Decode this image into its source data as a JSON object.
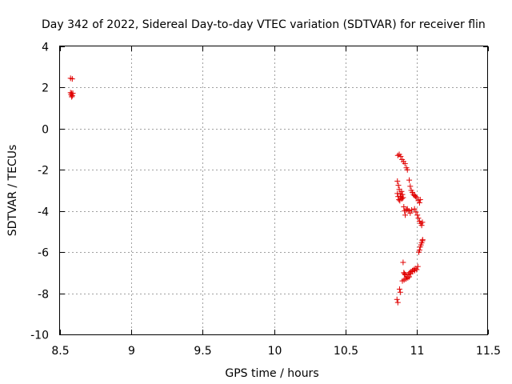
{
  "chart_data": {
    "type": "scatter",
    "title": "Day 342 of 2022, Sidereal Day-to-day VTEC variation (SDTVAR) for receiver flin",
    "xlabel": "GPS time / hours",
    "ylabel": "SDTVAR / TECUs",
    "xlim": [
      8.5,
      11.5
    ],
    "ylim": [
      -10,
      4
    ],
    "xticks": [
      "8.5",
      "9",
      "9.5",
      "10",
      "10.5",
      "11",
      "11.5"
    ],
    "yticks": [
      "4",
      "2",
      "0",
      "-2",
      "-4",
      "-6",
      "-8",
      "-10"
    ],
    "xtick_values": [
      8.5,
      9,
      9.5,
      10,
      10.5,
      11,
      11.5
    ],
    "ytick_values": [
      4,
      2,
      0,
      -2,
      -4,
      -6,
      -8,
      -10
    ],
    "grid": true,
    "marker_color": "#e00000",
    "series": [
      {
        "name": "SDTVAR",
        "marker": "plus",
        "points": [
          [
            8.574,
            2.45
          ],
          [
            8.586,
            2.42
          ],
          [
            8.574,
            1.75
          ],
          [
            8.578,
            1.65
          ],
          [
            8.582,
            1.72
          ],
          [
            8.586,
            1.6
          ],
          [
            8.59,
            1.72
          ],
          [
            8.582,
            1.55
          ],
          [
            10.868,
            -1.3
          ],
          [
            10.878,
            -1.25
          ],
          [
            10.888,
            -1.35
          ],
          [
            10.898,
            -1.5
          ],
          [
            10.908,
            -1.6
          ],
          [
            10.918,
            -1.7
          ],
          [
            10.928,
            -1.9
          ],
          [
            10.935,
            -2.0
          ],
          [
            10.865,
            -2.55
          ],
          [
            10.872,
            -2.75
          ],
          [
            10.878,
            -2.95
          ],
          [
            10.884,
            -3.15
          ],
          [
            10.89,
            -3.3
          ],
          [
            10.896,
            -3.4
          ],
          [
            10.902,
            -3.35
          ],
          [
            10.865,
            -3.15
          ],
          [
            10.87,
            -3.3
          ],
          [
            10.876,
            -3.45
          ],
          [
            10.882,
            -3.5
          ],
          [
            10.888,
            -3.3
          ],
          [
            10.894,
            -3.05
          ],
          [
            10.9,
            -3.2
          ],
          [
            10.905,
            -3.35
          ],
          [
            10.91,
            -3.8
          ],
          [
            10.915,
            -4.0
          ],
          [
            10.92,
            -4.2
          ],
          [
            10.928,
            -3.95
          ],
          [
            10.935,
            -3.9
          ],
          [
            10.945,
            -4.0
          ],
          [
            10.955,
            -4.1
          ],
          [
            10.965,
            -3.95
          ],
          [
            10.948,
            -2.5
          ],
          [
            10.955,
            -2.8
          ],
          [
            10.962,
            -3.0
          ],
          [
            10.97,
            -3.1
          ],
          [
            10.978,
            -3.2
          ],
          [
            10.985,
            -3.25
          ],
          [
            10.992,
            -3.3
          ],
          [
            11.0,
            -3.35
          ],
          [
            10.985,
            -3.9
          ],
          [
            10.995,
            -4.05
          ],
          [
            11.005,
            -4.2
          ],
          [
            11.012,
            -4.35
          ],
          [
            11.02,
            -4.5
          ],
          [
            11.028,
            -4.6
          ],
          [
            11.035,
            -4.7
          ],
          [
            11.04,
            -4.55
          ],
          [
            11.012,
            -3.5
          ],
          [
            11.02,
            -3.6
          ],
          [
            11.025,
            -3.45
          ],
          [
            11.015,
            -6.0
          ],
          [
            11.02,
            -5.9
          ],
          [
            11.025,
            -5.75
          ],
          [
            11.03,
            -5.65
          ],
          [
            11.035,
            -5.55
          ],
          [
            11.04,
            -5.45
          ],
          [
            11.042,
            -5.4
          ],
          [
            10.905,
            -6.5
          ],
          [
            10.91,
            -7.0
          ],
          [
            10.915,
            -7.05
          ],
          [
            10.92,
            -7.1
          ],
          [
            10.93,
            -7.2
          ],
          [
            10.94,
            -7.1
          ],
          [
            10.95,
            -7.0
          ],
          [
            10.96,
            -6.95
          ],
          [
            10.97,
            -6.9
          ],
          [
            10.98,
            -6.85
          ],
          [
            10.99,
            -6.8
          ],
          [
            11.0,
            -6.85
          ],
          [
            11.008,
            -6.7
          ],
          [
            10.9,
            -7.4
          ],
          [
            10.912,
            -7.35
          ],
          [
            10.925,
            -7.3
          ],
          [
            10.938,
            -7.25
          ],
          [
            10.948,
            -7.2
          ],
          [
            10.958,
            -7.05
          ],
          [
            10.97,
            -6.95
          ],
          [
            10.985,
            -6.9
          ],
          [
            10.88,
            -7.8
          ],
          [
            10.885,
            -7.95
          ],
          [
            10.862,
            -8.3
          ],
          [
            10.868,
            -8.45
          ]
        ]
      }
    ]
  }
}
